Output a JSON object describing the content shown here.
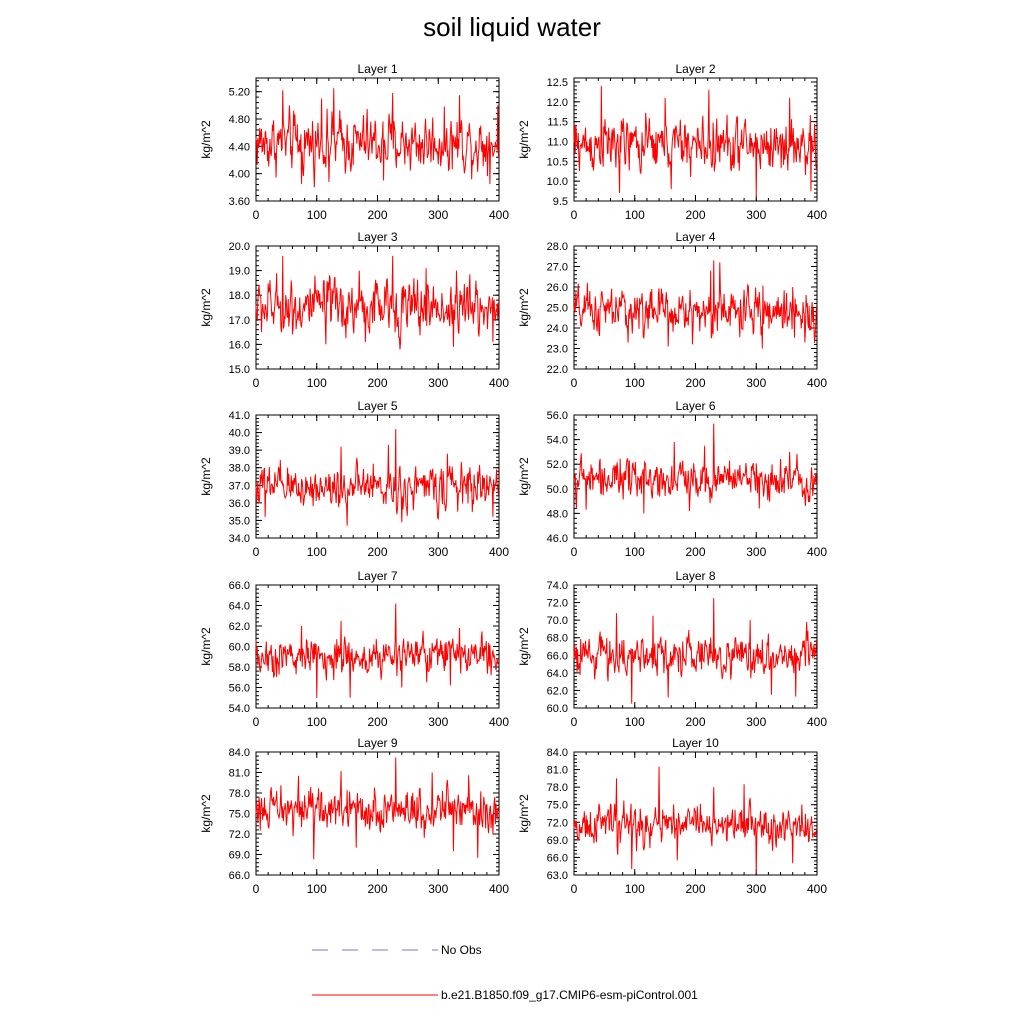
{
  "figure": {
    "title": "soil liquid water"
  },
  "legend": {
    "obs_label": "No Obs",
    "obs_color": "#7777cc",
    "model_label": "b.e21.B1850.f09_g17.CMIP6-esm-piControl.001",
    "model_color": "#ff0000"
  },
  "chart_data": [
    {
      "type": "line",
      "title": "Layer 1",
      "ylabel": "kg/m^2",
      "xlim": [
        0,
        400
      ],
      "xticks": [
        0,
        100,
        200,
        300,
        400
      ],
      "ylim": [
        3.6,
        5.4
      ],
      "yticks": [
        "3.60",
        "4.00",
        "4.40",
        "4.80",
        "5.20"
      ],
      "base": 4.45,
      "amp": 0.28,
      "peaks": [
        [
          44,
          5.22
        ],
        [
          108,
          5.1
        ],
        [
          128,
          5.25
        ],
        [
          225,
          5.18
        ],
        [
          335,
          5.15
        ],
        [
          398,
          5.0
        ]
      ],
      "troughs": [
        [
          75,
          3.85
        ],
        [
          120,
          3.88
        ],
        [
          210,
          3.9
        ],
        [
          385,
          3.85
        ]
      ],
      "series": [
        {
          "name": "b.e21.B1850.f09_g17.CMIP6-esm-piControl.001"
        }
      ]
    },
    {
      "type": "line",
      "title": "Layer 2",
      "ylabel": "kg/m^2",
      "xlim": [
        0,
        400
      ],
      "xticks": [
        0,
        100,
        200,
        300,
        400
      ],
      "ylim": [
        9.5,
        12.6
      ],
      "yticks": [
        "9.5",
        "10.0",
        "10.5",
        "11.0",
        "11.5",
        "12.0",
        "12.5"
      ],
      "base": 10.9,
      "amp": 0.45,
      "peaks": [
        [
          45,
          12.4
        ],
        [
          150,
          12.1
        ],
        [
          222,
          12.3
        ],
        [
          355,
          12.1
        ]
      ],
      "troughs": [
        [
          75,
          9.7
        ],
        [
          160,
          9.8
        ],
        [
          300,
          9.6
        ],
        [
          390,
          9.75
        ]
      ],
      "series": [
        {
          "name": "b.e21.B1850.f09_g17.CMIP6-esm-piControl.001"
        }
      ]
    },
    {
      "type": "line",
      "title": "Layer 3",
      "ylabel": "kg/m^2",
      "xlim": [
        0,
        400
      ],
      "xticks": [
        0,
        100,
        200,
        300,
        400
      ],
      "ylim": [
        15.0,
        20.0
      ],
      "yticks": [
        "15.0",
        "16.0",
        "17.0",
        "18.0",
        "19.0",
        "20.0"
      ],
      "base": 17.5,
      "amp": 0.75,
      "peaks": [
        [
          44,
          19.6
        ],
        [
          170,
          19.0
        ],
        [
          225,
          19.6
        ],
        [
          280,
          19.1
        ],
        [
          330,
          19.0
        ]
      ],
      "troughs": [
        [
          115,
          16.0
        ],
        [
          180,
          16.1
        ],
        [
          325,
          15.9
        ],
        [
          390,
          16.1
        ]
      ],
      "series": [
        {
          "name": "b.e21.B1850.f09_g17.CMIP6-esm-piControl.001"
        }
      ]
    },
    {
      "type": "line",
      "title": "Layer 4",
      "ylabel": "kg/m^2",
      "xlim": [
        0,
        400
      ],
      "xticks": [
        0,
        100,
        200,
        300,
        400
      ],
      "ylim": [
        22.0,
        28.0
      ],
      "yticks": [
        "22.0",
        "23.0",
        "24.0",
        "25.0",
        "26.0",
        "27.0",
        "28.0"
      ],
      "base": 24.8,
      "amp": 0.75,
      "peaks": [
        [
          225,
          26.8
        ],
        [
          230,
          27.3
        ],
        [
          240,
          27.2
        ],
        [
          360,
          26.0
        ]
      ],
      "troughs": [
        [
          155,
          23.1
        ],
        [
          195,
          23.2
        ],
        [
          310,
          23.0
        ],
        [
          380,
          23.3
        ]
      ],
      "series": [
        {
          "name": "b.e21.B1850.f09_g17.CMIP6-esm-piControl.001"
        }
      ]
    },
    {
      "type": "line",
      "title": "Layer 5",
      "ylabel": "kg/m^2",
      "xlim": [
        0,
        400
      ],
      "xticks": [
        0,
        100,
        200,
        300,
        400
      ],
      "ylim": [
        34.0,
        41.0
      ],
      "yticks": [
        "34.0",
        "35.0",
        "36.0",
        "37.0",
        "38.0",
        "39.0",
        "40.0",
        "41.0"
      ],
      "base": 36.9,
      "amp": 0.8,
      "peaks": [
        [
          140,
          39.2
        ],
        [
          218,
          39.3
        ],
        [
          230,
          40.2
        ],
        [
          240,
          39.7
        ],
        [
          315,
          38.8
        ]
      ],
      "troughs": [
        [
          15,
          35.2
        ],
        [
          150,
          34.7
        ],
        [
          240,
          34.9
        ],
        [
          390,
          35.2
        ]
      ],
      "series": [
        {
          "name": "b.e21.B1850.f09_g17.CMIP6-esm-piControl.001"
        }
      ]
    },
    {
      "type": "line",
      "title": "Layer 6",
      "ylabel": "kg/m^2",
      "xlim": [
        0,
        400
      ],
      "xticks": [
        0,
        100,
        200,
        300,
        400
      ],
      "ylim": [
        46.0,
        56.0
      ],
      "yticks": [
        "46.0",
        "48.0",
        "50.0",
        "52.0",
        "54.0",
        "56.0"
      ],
      "base": 50.8,
      "amp": 1.05,
      "peaks": [
        [
          165,
          53.8
        ],
        [
          215,
          53.5
        ],
        [
          230,
          55.3
        ],
        [
          355,
          53.0
        ]
      ],
      "troughs": [
        [
          20,
          48.3
        ],
        [
          115,
          48.0
        ],
        [
          190,
          48.2
        ],
        [
          305,
          48.4
        ]
      ],
      "series": [
        {
          "name": "b.e21.B1850.f09_g17.CMIP6-esm-piControl.001"
        }
      ]
    },
    {
      "type": "line",
      "title": "Layer 7",
      "ylabel": "kg/m^2",
      "xlim": [
        0,
        400
      ],
      "xticks": [
        0,
        100,
        200,
        300,
        400
      ],
      "ylim": [
        54.0,
        66.0
      ],
      "yticks": [
        "54.0",
        "56.0",
        "58.0",
        "60.0",
        "62.0",
        "64.0",
        "66.0"
      ],
      "base": 59.0,
      "amp": 1.25,
      "peaks": [
        [
          75,
          62.0
        ],
        [
          140,
          62.5
        ],
        [
          230,
          64.2
        ],
        [
          335,
          61.8
        ]
      ],
      "troughs": [
        [
          100,
          55.0
        ],
        [
          155,
          55.0
        ],
        [
          240,
          56.0
        ],
        [
          320,
          56.2
        ]
      ],
      "series": [
        {
          "name": "b.e21.B1850.f09_g17.CMIP6-esm-piControl.001"
        }
      ]
    },
    {
      "type": "line",
      "title": "Layer 8",
      "ylabel": "kg/m^2",
      "xlim": [
        0,
        400
      ],
      "xticks": [
        0,
        100,
        200,
        300,
        400
      ],
      "ylim": [
        60.0,
        74.0
      ],
      "yticks": [
        "60.0",
        "62.0",
        "64.0",
        "66.0",
        "68.0",
        "70.0",
        "72.0",
        "74.0"
      ],
      "base": 66.0,
      "amp": 1.5,
      "peaks": [
        [
          70,
          70.8
        ],
        [
          130,
          70.5
        ],
        [
          230,
          72.5
        ],
        [
          290,
          70.0
        ]
      ],
      "troughs": [
        [
          95,
          60.5
        ],
        [
          155,
          61.2
        ],
        [
          325,
          61.5
        ],
        [
          365,
          61.3
        ]
      ],
      "series": [
        {
          "name": "b.e21.B1850.f09_g17.CMIP6-esm-piControl.001"
        }
      ]
    },
    {
      "type": "line",
      "title": "Layer 9",
      "ylabel": "kg/m^2",
      "xlim": [
        0,
        400
      ],
      "xticks": [
        0,
        100,
        200,
        300,
        400
      ],
      "ylim": [
        66.0,
        84.0
      ],
      "yticks": [
        "66.0",
        "69.0",
        "72.0",
        "75.0",
        "78.0",
        "81.0",
        "84.0"
      ],
      "base": 75.5,
      "amp": 2.0,
      "peaks": [
        [
          70,
          80.5
        ],
        [
          140,
          81.2
        ],
        [
          230,
          83.2
        ],
        [
          290,
          81.0
        ],
        [
          350,
          80.6
        ]
      ],
      "troughs": [
        [
          95,
          68.3
        ],
        [
          165,
          70.0
        ],
        [
          325,
          69.5
        ],
        [
          365,
          68.5
        ]
      ],
      "series": [
        {
          "name": "b.e21.B1850.f09_g17.CMIP6-esm-piControl.001"
        }
      ]
    },
    {
      "type": "line",
      "title": "Layer 10",
      "ylabel": "kg/m^2",
      "xlim": [
        0,
        400
      ],
      "xticks": [
        0,
        100,
        200,
        300,
        400
      ],
      "ylim": [
        63.0,
        84.0
      ],
      "yticks": [
        "63.0",
        "66.0",
        "69.0",
        "72.0",
        "75.0",
        "78.0",
        "81.0",
        "84.0"
      ],
      "base": 71.5,
      "amp": 2.2,
      "peaks": [
        [
          70,
          79.5
        ],
        [
          140,
          81.5
        ],
        [
          230,
          78.0
        ],
        [
          280,
          78.5
        ]
      ],
      "troughs": [
        [
          95,
          64.0
        ],
        [
          170,
          65.5
        ],
        [
          300,
          63.2
        ],
        [
          360,
          65.0
        ]
      ],
      "series": [
        {
          "name": "b.e21.B1850.f09_g17.CMIP6-esm-piControl.001"
        }
      ]
    }
  ]
}
